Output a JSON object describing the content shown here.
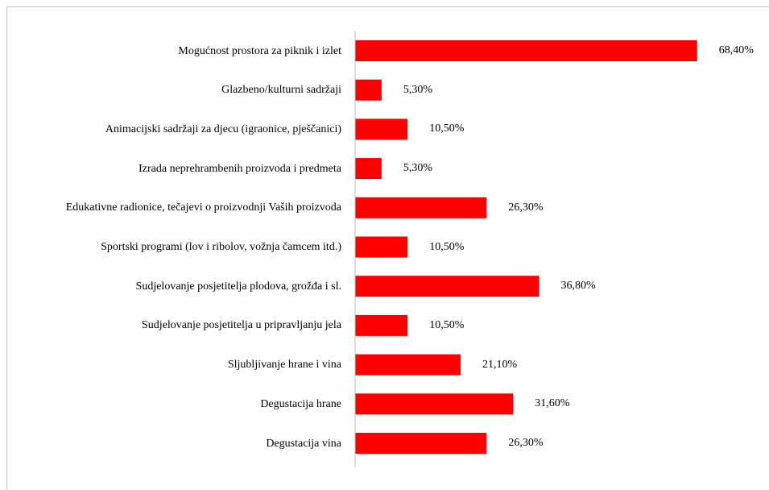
{
  "chart_data": {
    "type": "bar",
    "orientation": "horizontal",
    "color": "#ff0000",
    "categories": [
      "Mogućnost prostora za piknik i izlet",
      "Glazbeno/kulturni sadržaji",
      "Animacijski sadržaji za djecu (igraonice, pješčanici)",
      "Izrada neprehrambenih proizvoda i predmeta",
      "Edukativne radionice, tečajevi o proizvodnji Vaših proizvoda",
      "Sportski programi (lov i ribolov, vožnja čamcem itd.)",
      "Sudjelovanje posjetitelja plodova, grožđa i sl.",
      "Sudjelovanje posjetitelja u pripravljanju jela",
      "Sljubljivanje hrane i vina",
      "Degustacija hrane",
      "Degustacija vina"
    ],
    "values": [
      68.4,
      5.3,
      10.5,
      5.3,
      26.3,
      10.5,
      36.8,
      10.5,
      21.1,
      31.6,
      26.3
    ],
    "value_labels": [
      "68,40%",
      "5,30%",
      "10,50%",
      "5,30%",
      "26,30%",
      "10,50%",
      "36,80%",
      "10,50%",
      "21,10%",
      "31,60%",
      "26,30%"
    ]
  }
}
